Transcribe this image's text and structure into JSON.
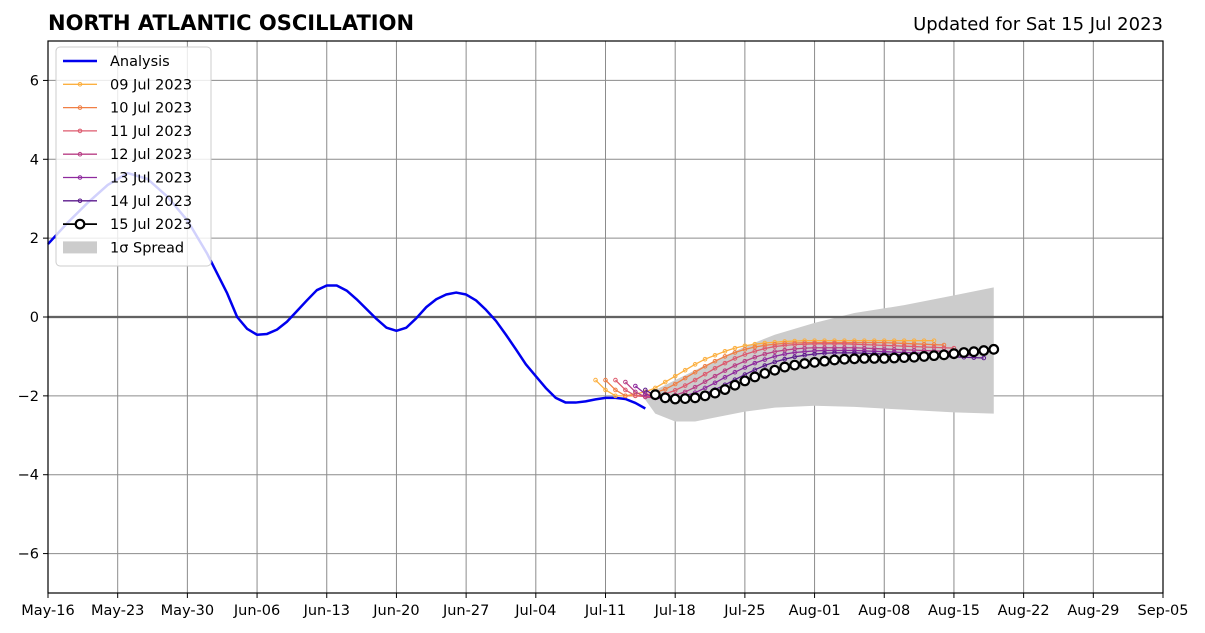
{
  "chart_data": {
    "type": "line",
    "title": "NORTH ATLANTIC OSCILLATION",
    "subtitle": "Updated for Sat 15 Jul 2023",
    "x_tick_labels": [
      "May-16",
      "May-23",
      "May-30",
      "Jun-06",
      "Jun-13",
      "Jun-20",
      "Jun-27",
      "Jul-04",
      "Jul-11",
      "Jul-18",
      "Jul-25",
      "Aug-01",
      "Aug-08",
      "Aug-15",
      "Aug-22",
      "Aug-29",
      "Sep-05"
    ],
    "xlim": [
      "2023-05-16",
      "2023-09-05"
    ],
    "ylim": [
      -7,
      7
    ],
    "y_ticks": [
      -6,
      -4,
      -2,
      0,
      2,
      4,
      6
    ],
    "y_tick_labels": [
      "−6",
      "−4",
      "−2",
      "0",
      "2",
      "4",
      "6"
    ],
    "grid": true,
    "zero_line": true,
    "legend_placement": "upper-left",
    "legend_entries": [
      "Analysis",
      "09 Jul 2023",
      "10 Jul 2023",
      "11 Jul 2023",
      "12 Jul 2023",
      "13 Jul 2023",
      "14 Jul 2023",
      "15 Jul 2023",
      "1σ Spread"
    ],
    "analysis": {
      "name": "Analysis",
      "color": "#0000ee",
      "points": [
        [
          "2023-05-16",
          1.85
        ],
        [
          "2023-05-18",
          2.4
        ],
        [
          "2023-05-20",
          2.9
        ],
        [
          "2023-05-22",
          3.35
        ],
        [
          "2023-05-24",
          3.65
        ],
        [
          "2023-05-26",
          3.5
        ],
        [
          "2023-05-28",
          3.05
        ],
        [
          "2023-05-30",
          2.45
        ],
        [
          "2023-06-01",
          1.6
        ],
        [
          "2023-06-03",
          0.6
        ],
        [
          "2023-06-04",
          0.0
        ],
        [
          "2023-06-05",
          -0.3
        ],
        [
          "2023-06-06",
          -0.45
        ],
        [
          "2023-06-07",
          -0.43
        ],
        [
          "2023-06-08",
          -0.32
        ],
        [
          "2023-06-09",
          -0.12
        ],
        [
          "2023-06-10",
          0.15
        ],
        [
          "2023-06-11",
          0.42
        ],
        [
          "2023-06-12",
          0.68
        ],
        [
          "2023-06-13",
          0.8
        ],
        [
          "2023-06-14",
          0.8
        ],
        [
          "2023-06-15",
          0.67
        ],
        [
          "2023-06-16",
          0.45
        ],
        [
          "2023-06-17",
          0.2
        ],
        [
          "2023-06-18",
          -0.05
        ],
        [
          "2023-06-19",
          -0.27
        ],
        [
          "2023-06-20",
          -0.35
        ],
        [
          "2023-06-21",
          -0.27
        ],
        [
          "2023-06-22",
          -0.03
        ],
        [
          "2023-06-23",
          0.25
        ],
        [
          "2023-06-24",
          0.45
        ],
        [
          "2023-06-25",
          0.57
        ],
        [
          "2023-06-26",
          0.62
        ],
        [
          "2023-06-27",
          0.57
        ],
        [
          "2023-06-28",
          0.42
        ],
        [
          "2023-06-29",
          0.18
        ],
        [
          "2023-06-30",
          -0.1
        ],
        [
          "2023-07-01",
          -0.45
        ],
        [
          "2023-07-02",
          -0.82
        ],
        [
          "2023-07-03",
          -1.2
        ],
        [
          "2023-07-04",
          -1.5
        ],
        [
          "2023-07-05",
          -1.8
        ],
        [
          "2023-07-06",
          -2.05
        ],
        [
          "2023-07-07",
          -2.17
        ],
        [
          "2023-07-08",
          -2.17
        ],
        [
          "2023-07-09",
          -2.14
        ],
        [
          "2023-07-10",
          -2.09
        ],
        [
          "2023-07-11",
          -2.05
        ],
        [
          "2023-07-12",
          -2.05
        ],
        [
          "2023-07-13",
          -2.08
        ],
        [
          "2023-07-14",
          -2.18
        ],
        [
          "2023-07-15",
          -2.32
        ]
      ]
    },
    "spread": {
      "name": "1σ Spread",
      "color": "#cccccc",
      "x": [
        "2023-07-15",
        "2023-07-16",
        "2023-07-18",
        "2023-07-20",
        "2023-07-22",
        "2023-07-25",
        "2023-07-28",
        "2023-08-01",
        "2023-08-05",
        "2023-08-10",
        "2023-08-15",
        "2023-08-19"
      ],
      "upper": [
        -2.0,
        -1.85,
        -1.6,
        -1.35,
        -1.1,
        -0.75,
        -0.45,
        -0.15,
        0.1,
        0.3,
        0.55,
        0.75
      ],
      "lower": [
        -2.1,
        -2.45,
        -2.65,
        -2.65,
        -2.55,
        -2.4,
        -2.3,
        -2.25,
        -2.28,
        -2.35,
        -2.42,
        -2.45
      ]
    },
    "series": [
      {
        "name": "09 Jul 2023",
        "color": "#fcb040",
        "start": "2023-07-10",
        "points": [
          -1.6,
          -1.85,
          -2.0,
          -2.0,
          -1.95,
          -1.9,
          -1.8,
          -1.65,
          -1.5,
          -1.35,
          -1.2,
          -1.07,
          -0.97,
          -0.87,
          -0.79,
          -0.73,
          -0.69,
          -0.66,
          -0.64,
          -0.62,
          -0.61,
          -0.6,
          -0.6,
          -0.6,
          -0.6,
          -0.6,
          -0.6,
          -0.6,
          -0.6,
          -0.6,
          -0.6,
          -0.6,
          -0.6,
          -0.6,
          -0.6
        ]
      },
      {
        "name": "10 Jul 2023",
        "color": "#f07f45",
        "start": "2023-07-11",
        "points": [
          -1.6,
          -1.85,
          -2.0,
          -2.0,
          -1.98,
          -1.92,
          -1.83,
          -1.7,
          -1.55,
          -1.4,
          -1.25,
          -1.12,
          -1.0,
          -0.9,
          -0.82,
          -0.76,
          -0.72,
          -0.69,
          -0.67,
          -0.66,
          -0.65,
          -0.65,
          -0.65,
          -0.65,
          -0.65,
          -0.65,
          -0.65,
          -0.65,
          -0.65,
          -0.66,
          -0.67,
          -0.68,
          -0.69,
          -0.7,
          -0.71
        ]
      },
      {
        "name": "11 Jul 2023",
        "color": "#dd5a6e",
        "start": "2023-07-12",
        "points": [
          -1.6,
          -1.85,
          -2.0,
          -2.02,
          -2.0,
          -1.95,
          -1.86,
          -1.74,
          -1.6,
          -1.45,
          -1.3,
          -1.17,
          -1.05,
          -0.95,
          -0.87,
          -0.8,
          -0.75,
          -0.72,
          -0.7,
          -0.69,
          -0.68,
          -0.68,
          -0.68,
          -0.68,
          -0.69,
          -0.7,
          -0.71,
          -0.72,
          -0.73,
          -0.74,
          -0.75,
          -0.76,
          -0.77,
          -0.78,
          -0.79
        ]
      },
      {
        "name": "12 Jul 2023",
        "color": "#b83f86",
        "start": "2023-07-13",
        "points": [
          -1.65,
          -1.9,
          -2.03,
          -2.05,
          -2.03,
          -1.98,
          -1.9,
          -1.78,
          -1.64,
          -1.5,
          -1.36,
          -1.23,
          -1.12,
          -1.02,
          -0.94,
          -0.88,
          -0.84,
          -0.81,
          -0.79,
          -0.78,
          -0.78,
          -0.78,
          -0.78,
          -0.78,
          -0.79,
          -0.8,
          -0.81,
          -0.82,
          -0.83,
          -0.84,
          -0.85,
          -0.86,
          -0.87,
          -0.88,
          -0.89
        ]
      },
      {
        "name": "13 Jul 2023",
        "color": "#8e2a9e",
        "start": "2023-07-14",
        "points": [
          -1.75,
          -1.95,
          -2.05,
          -2.08,
          -2.06,
          -2.0,
          -1.92,
          -1.8,
          -1.67,
          -1.53,
          -1.4,
          -1.28,
          -1.17,
          -1.08,
          -1.0,
          -0.94,
          -0.9,
          -0.88,
          -0.86,
          -0.85,
          -0.85,
          -0.85,
          -0.85,
          -0.86,
          -0.87,
          -0.88,
          -0.89,
          -0.9,
          -0.91,
          -0.92,
          -0.93,
          -0.94,
          -0.95,
          -0.96,
          -0.97
        ]
      },
      {
        "name": "14 Jul 2023",
        "color": "#5b1a8c",
        "start": "2023-07-15",
        "points": [
          -1.85,
          -2.0,
          -2.08,
          -2.1,
          -2.08,
          -2.03,
          -1.95,
          -1.84,
          -1.72,
          -1.59,
          -1.46,
          -1.34,
          -1.23,
          -1.14,
          -1.07,
          -1.01,
          -0.97,
          -0.94,
          -0.92,
          -0.91,
          -0.91,
          -0.91,
          -0.92,
          -0.93,
          -0.94,
          -0.95,
          -0.96,
          -0.97,
          -0.98,
          -0.99,
          -1.0,
          -1.01,
          -1.02,
          -1.03,
          -1.04
        ]
      },
      {
        "name": "15 Jul 2023",
        "color": "#000000",
        "start": "2023-07-16",
        "points": [
          -1.97,
          -2.05,
          -2.08,
          -2.07,
          -2.05,
          -2.0,
          -1.93,
          -1.84,
          -1.73,
          -1.62,
          -1.52,
          -1.43,
          -1.35,
          -1.27,
          -1.22,
          -1.18,
          -1.15,
          -1.12,
          -1.09,
          -1.07,
          -1.06,
          -1.05,
          -1.05,
          -1.05,
          -1.04,
          -1.03,
          -1.02,
          -1.0,
          -0.98,
          -0.96,
          -0.93,
          -0.9,
          -0.88,
          -0.85,
          -0.82
        ]
      }
    ]
  }
}
